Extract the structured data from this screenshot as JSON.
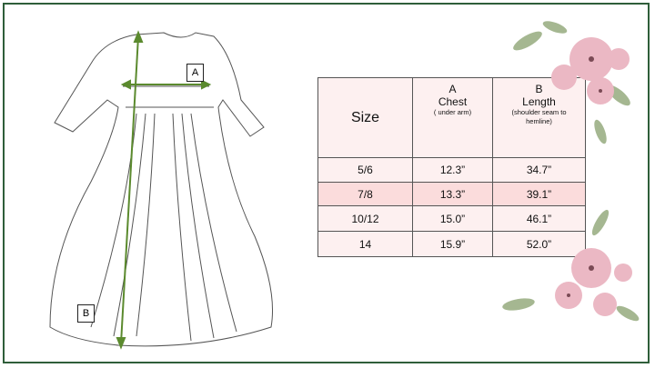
{
  "labels": {
    "a": "A",
    "b": "B"
  },
  "table": {
    "headers": {
      "size": "Size",
      "a_letter": "A",
      "a_title": "Chest",
      "a_sub": "( under arm)",
      "b_letter": "B",
      "b_title": "Length",
      "b_sub": "(shoulder seam to hemline)"
    },
    "rows": [
      {
        "size": "5/6",
        "chest": "12.3”",
        "length": "34.7”"
      },
      {
        "size": "7/8",
        "chest": "13.3”",
        "length": "39.1”"
      },
      {
        "size": "10/12",
        "chest": "15.0”",
        "length": "46.1”"
      },
      {
        "size": "14",
        "chest": "15.9”",
        "length": "52.0”"
      }
    ],
    "highlight_row": 1
  },
  "colors": {
    "frame": "#2f5e3a",
    "measure": "#5b8a2e",
    "table_bg": "#fdf0f0",
    "highlight": "#fbdcdc",
    "flower": "#e8b4c0"
  }
}
